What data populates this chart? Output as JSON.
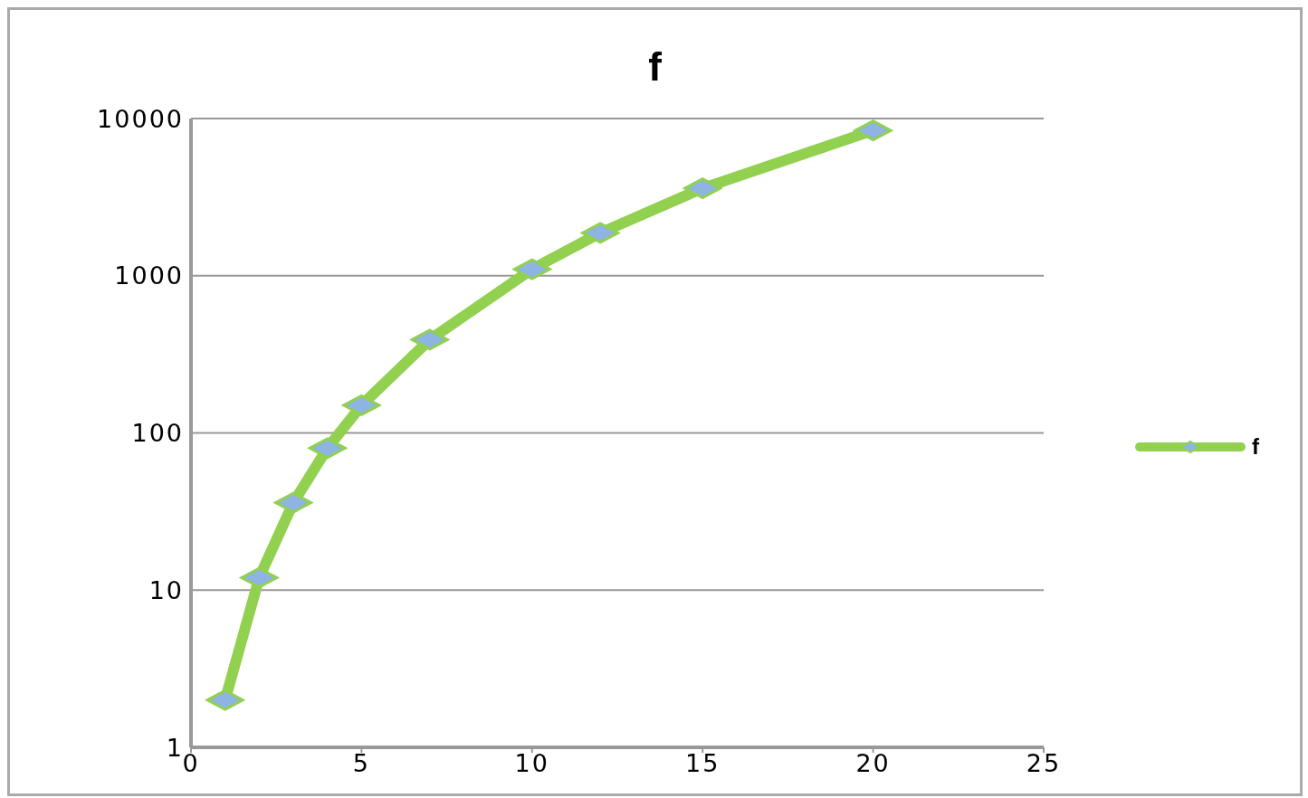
{
  "chart_data": {
    "type": "line",
    "title": "f",
    "x": [
      1,
      2,
      3,
      4,
      5,
      7,
      10,
      12,
      15,
      20
    ],
    "series": [
      {
        "name": "f",
        "color": "#92d050",
        "values": [
          2,
          12,
          36,
          80,
          150,
          392,
          1100,
          1872,
          3600,
          8400
        ]
      }
    ],
    "xlim": [
      0,
      25
    ],
    "xticks": [
      0,
      5,
      10,
      15,
      20,
      25
    ],
    "ylim": [
      1,
      10000
    ],
    "yticks": [
      1,
      10,
      100,
      1000,
      10000
    ],
    "log": "y",
    "grid": "y",
    "legend": "right",
    "marker": "diamond",
    "line_style": "solid"
  }
}
